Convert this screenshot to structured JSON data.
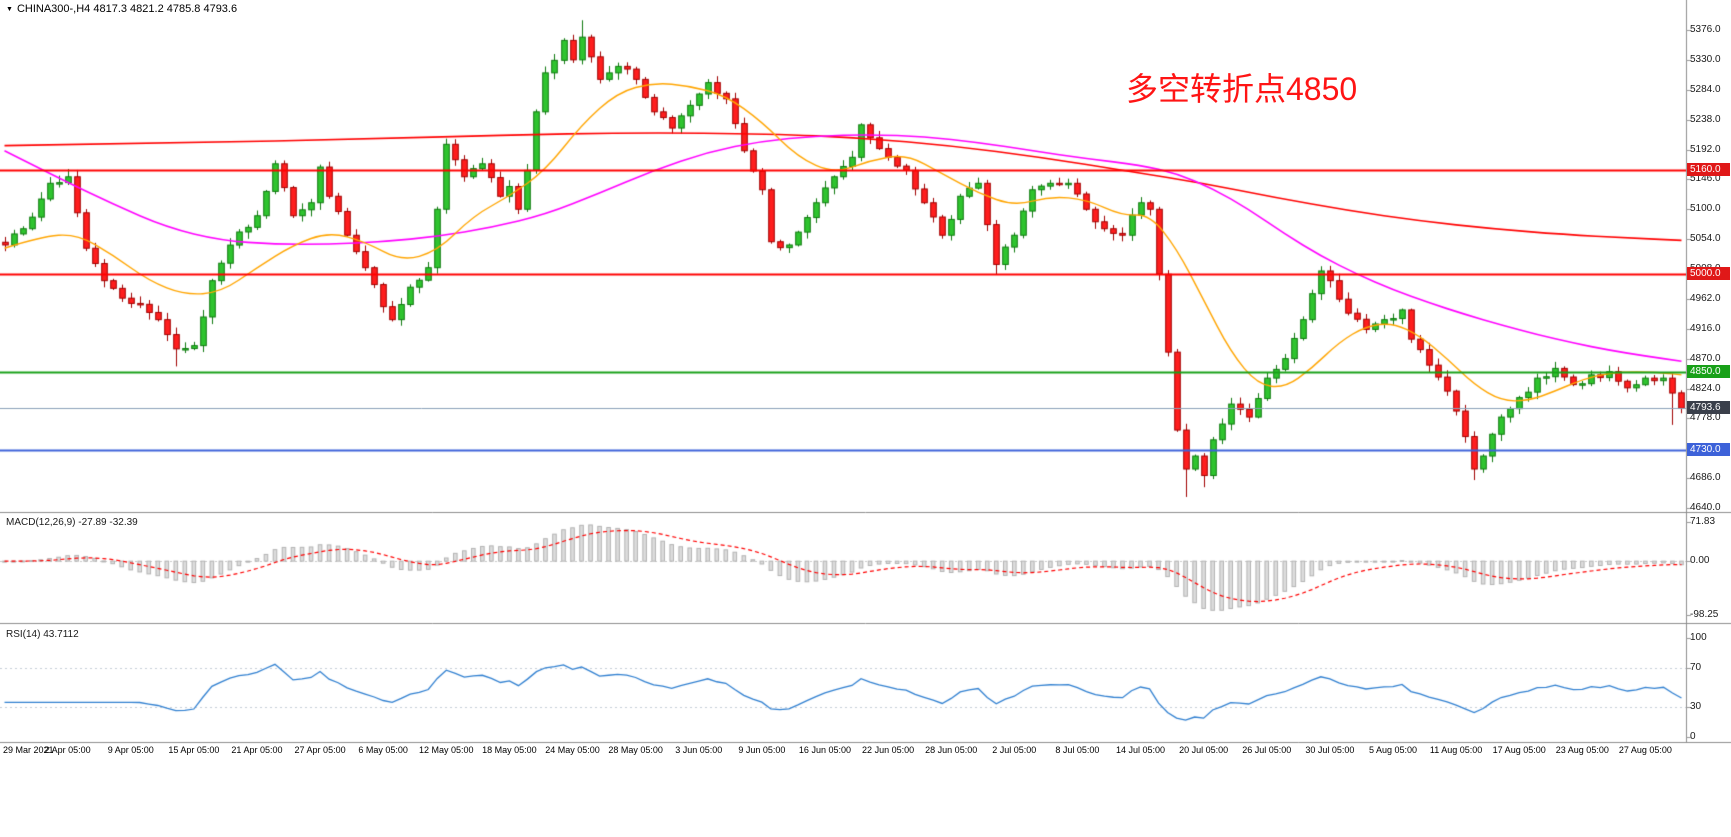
{
  "header": {
    "dropdown_glyph": "▼",
    "symbol_ohlc": "CHINA300-,H4 4817.3 4821.2 4785.8 4793.6"
  },
  "annotation": {
    "text": "多空转折点4850",
    "color": "#ff1414"
  },
  "price_panel": {
    "axis_ticks": [
      "5376.0",
      "5330.0",
      "5284.0",
      "5238.0",
      "5192.0",
      "5146.0",
      "5100.0",
      "5054.0",
      "5008.0",
      "4962.0",
      "4916.0",
      "4870.0",
      "4824.0",
      "4778.0",
      "4732.0",
      "4686.0",
      "4640.0"
    ],
    "hlines": [
      {
        "price": 5160.0,
        "label": "5160.0",
        "line_color": "#ff0000",
        "label_bg": "#e01818"
      },
      {
        "price": 5000.0,
        "label": "5000.0",
        "line_color": "#ff0000",
        "label_bg": "#e01818"
      },
      {
        "price": 4850.0,
        "label": "4850.0",
        "line_color": "#18a018",
        "label_bg": "#18a018"
      },
      {
        "price": 4730.0,
        "label": "4730.0",
        "line_color": "#3d62d9",
        "label_bg": "#3d62d9"
      }
    ],
    "current_price": {
      "price": 4793.6,
      "label": "4793.6",
      "line_color": "#8aa0b8",
      "label_bg": "#3a3f4a"
    }
  },
  "macd_panel": {
    "name": "MACD(12,26,9)",
    "values_text": "-27.89 -32.39",
    "ticks": [
      {
        "label": "71.83",
        "value": 71.83
      },
      {
        "label": "0.00",
        "value": 0
      },
      {
        "label": "-98.25",
        "value": -98.25
      }
    ]
  },
  "rsi_panel": {
    "name": "RSI(14)",
    "value_text": "43.7112",
    "levels": [
      70,
      30
    ],
    "ticks": [
      {
        "label": "100",
        "value": 100
      },
      {
        "label": "70",
        "value": 70
      },
      {
        "label": "30",
        "value": 30
      },
      {
        "label": "0",
        "value": 0
      }
    ]
  },
  "time_axis": {
    "labels": [
      "29 Mar 2021",
      "2 Apr 05:00",
      "9 Apr 05:00",
      "15 Apr 05:00",
      "21 Apr 05:00",
      "27 Apr 05:00",
      "6 May 05:00",
      "12 May 05:00",
      "18 May 05:00",
      "24 May 05:00",
      "28 May 05:00",
      "3 Jun 05:00",
      "9 Jun 05:00",
      "16 Jun 05:00",
      "22 Jun 05:00",
      "28 Jun 05:00",
      "2 Jul 05:00",
      "8 Jul 05:00",
      "14 Jul 05:00",
      "20 Jul 05:00",
      "26 Jul 05:00",
      "30 Jul 05:00",
      "5 Aug 05:00",
      "11 Aug 05:00",
      "17 Aug 05:00",
      "23 Aug 05:00",
      "27 Aug 05:00"
    ]
  },
  "colors": {
    "up_fill": "#2fc42f",
    "up_edge": "#0f7a0f",
    "down_fill": "#ff1e1e",
    "down_edge": "#a00000",
    "macd_hist_fill": "#dcdcdc",
    "macd_hist_edge": "#b3b3b3",
    "macd_signal": "#ff0000",
    "rsi_line": "#2f7fd0",
    "separator": "#8c8c8c",
    "axis_text": "#1a1a1a"
  },
  "chart_data": {
    "type": "candlestick",
    "symbol": "CHINA300-",
    "timeframe": "H4",
    "ohlc_current": {
      "open": 4817.3,
      "high": 4821.2,
      "low": 4785.8,
      "close": 4793.6
    },
    "last_price": 4793.6,
    "n_candles": 187,
    "price_axis_range": [
      4640,
      5376
    ],
    "horizontal_lines": [
      5160.0,
      5000.0,
      4850.0,
      4730.0
    ],
    "close_anchors": [
      [
        0,
        5045
      ],
      [
        2,
        5070
      ],
      [
        5,
        5140
      ],
      [
        7,
        5150
      ],
      [
        9,
        5040
      ],
      [
        11,
        4990
      ],
      [
        14,
        4955
      ],
      [
        17,
        4930
      ],
      [
        19,
        4885
      ],
      [
        21,
        4890
      ],
      [
        23,
        4990
      ],
      [
        26,
        5065
      ],
      [
        28,
        5090
      ],
      [
        30,
        5170
      ],
      [
        32,
        5090
      ],
      [
        34,
        5110
      ],
      [
        35,
        5165
      ],
      [
        36,
        5120
      ],
      [
        38,
        5060
      ],
      [
        40,
        5010
      ],
      [
        42,
        4950
      ],
      [
        43,
        4930
      ],
      [
        45,
        4980
      ],
      [
        47,
        5010
      ],
      [
        48,
        5100
      ],
      [
        49,
        5200
      ],
      [
        51,
        5150
      ],
      [
        53,
        5170
      ],
      [
        55,
        5120
      ],
      [
        56,
        5135
      ],
      [
        57,
        5100
      ],
      [
        58,
        5160
      ],
      [
        59,
        5250
      ],
      [
        60,
        5310
      ],
      [
        62,
        5360
      ],
      [
        63,
        5330
      ],
      [
        64,
        5365
      ],
      [
        66,
        5300
      ],
      [
        68,
        5320
      ],
      [
        70,
        5300
      ],
      [
        72,
        5250
      ],
      [
        74,
        5225
      ],
      [
        76,
        5260
      ],
      [
        78,
        5295
      ],
      [
        80,
        5270
      ],
      [
        82,
        5190
      ],
      [
        84,
        5130
      ],
      [
        85,
        5050
      ],
      [
        87,
        5045
      ],
      [
        90,
        5110
      ],
      [
        92,
        5150
      ],
      [
        94,
        5180
      ],
      [
        95,
        5230
      ],
      [
        96,
        5210
      ],
      [
        98,
        5180
      ],
      [
        100,
        5160
      ],
      [
        102,
        5110
      ],
      [
        104,
        5060
      ],
      [
        106,
        5120
      ],
      [
        108,
        5140
      ],
      [
        110,
        5015
      ],
      [
        112,
        5060
      ],
      [
        114,
        5130
      ],
      [
        116,
        5140
      ],
      [
        118,
        5140
      ],
      [
        120,
        5100
      ],
      [
        122,
        5070
      ],
      [
        124,
        5060
      ],
      [
        126,
        5110
      ],
      [
        127,
        5100
      ],
      [
        128,
        5000
      ],
      [
        129,
        4880
      ],
      [
        130,
        4760
      ],
      [
        131,
        4700
      ],
      [
        132,
        4720
      ],
      [
        133,
        4690
      ],
      [
        134,
        4745
      ],
      [
        136,
        4800
      ],
      [
        138,
        4780
      ],
      [
        140,
        4840
      ],
      [
        142,
        4870
      ],
      [
        144,
        4930
      ],
      [
        145,
        4970
      ],
      [
        146,
        5005
      ],
      [
        147,
        4990
      ],
      [
        149,
        4940
      ],
      [
        151,
        4915
      ],
      [
        153,
        4930
      ],
      [
        155,
        4945
      ],
      [
        156,
        4900
      ],
      [
        158,
        4860
      ],
      [
        160,
        4820
      ],
      [
        162,
        4750
      ],
      [
        163,
        4700
      ],
      [
        164,
        4720
      ],
      [
        166,
        4780
      ],
      [
        168,
        4810
      ],
      [
        170,
        4840
      ],
      [
        172,
        4855
      ],
      [
        174,
        4830
      ],
      [
        176,
        4845
      ],
      [
        178,
        4850
      ],
      [
        180,
        4825
      ],
      [
        182,
        4840
      ],
      [
        184,
        4840
      ],
      [
        185,
        4817
      ],
      [
        186,
        4793.6
      ]
    ],
    "wick_overrides": [
      {
        "i": 7,
        "high": 5162
      },
      {
        "i": 19,
        "low": 4858
      },
      {
        "i": 64,
        "high": 5391
      },
      {
        "i": 110,
        "low": 4999
      },
      {
        "i": 131,
        "low": 4657
      },
      {
        "i": 133,
        "low": 4672
      },
      {
        "i": 163,
        "low": 4683
      },
      {
        "i": 185,
        "low": 4768
      }
    ],
    "moving_averages": [
      {
        "name": "ma-slow",
        "color": "#ff0000",
        "width": 1.6,
        "anchors": [
          [
            0,
            5198
          ],
          [
            20,
            5202
          ],
          [
            40,
            5208
          ],
          [
            55,
            5214
          ],
          [
            70,
            5218
          ],
          [
            85,
            5216
          ],
          [
            95,
            5210
          ],
          [
            105,
            5198
          ],
          [
            115,
            5180
          ],
          [
            125,
            5158
          ],
          [
            133,
            5140
          ],
          [
            141,
            5118
          ],
          [
            149,
            5098
          ],
          [
            157,
            5082
          ],
          [
            165,
            5070
          ],
          [
            173,
            5061
          ],
          [
            180,
            5056
          ],
          [
            186,
            5052
          ]
        ]
      },
      {
        "name": "ma-medium",
        "color": "#ff00ff",
        "width": 1.6,
        "anchors": [
          [
            0,
            5190
          ],
          [
            6,
            5148
          ],
          [
            12,
            5108
          ],
          [
            18,
            5072
          ],
          [
            24,
            5052
          ],
          [
            30,
            5046
          ],
          [
            36,
            5046
          ],
          [
            42,
            5050
          ],
          [
            48,
            5058
          ],
          [
            54,
            5072
          ],
          [
            60,
            5092
          ],
          [
            66,
            5125
          ],
          [
            72,
            5160
          ],
          [
            78,
            5188
          ],
          [
            84,
            5205
          ],
          [
            90,
            5213
          ],
          [
            96,
            5215
          ],
          [
            102,
            5212
          ],
          [
            108,
            5203
          ],
          [
            114,
            5190
          ],
          [
            120,
            5178
          ],
          [
            126,
            5168
          ],
          [
            130,
            5155
          ],
          [
            134,
            5132
          ],
          [
            138,
            5100
          ],
          [
            142,
            5062
          ],
          [
            146,
            5028
          ],
          [
            150,
            5000
          ],
          [
            154,
            4976
          ],
          [
            158,
            4956
          ],
          [
            162,
            4938
          ],
          [
            166,
            4922
          ],
          [
            170,
            4907
          ],
          [
            174,
            4894
          ],
          [
            178,
            4883
          ],
          [
            182,
            4874
          ],
          [
            186,
            4866
          ]
        ]
      },
      {
        "name": "ma-fast",
        "color": "#ffa500",
        "width": 1.4,
        "anchors": [
          [
            0,
            5040
          ],
          [
            4,
            5058
          ],
          [
            8,
            5062
          ],
          [
            12,
            5030
          ],
          [
            16,
            4990
          ],
          [
            20,
            4968
          ],
          [
            24,
            4972
          ],
          [
            28,
            5010
          ],
          [
            32,
            5045
          ],
          [
            36,
            5065
          ],
          [
            40,
            5050
          ],
          [
            44,
            5020
          ],
          [
            48,
            5035
          ],
          [
            52,
            5090
          ],
          [
            56,
            5120
          ],
          [
            60,
            5160
          ],
          [
            64,
            5230
          ],
          [
            68,
            5280
          ],
          [
            72,
            5295
          ],
          [
            76,
            5290
          ],
          [
            80,
            5275
          ],
          [
            84,
            5235
          ],
          [
            88,
            5180
          ],
          [
            92,
            5155
          ],
          [
            96,
            5175
          ],
          [
            100,
            5185
          ],
          [
            104,
            5155
          ],
          [
            108,
            5125
          ],
          [
            112,
            5105
          ],
          [
            116,
            5120
          ],
          [
            120,
            5115
          ],
          [
            124,
            5090
          ],
          [
            127,
            5092
          ],
          [
            130,
            5040
          ],
          [
            133,
            4960
          ],
          [
            136,
            4880
          ],
          [
            139,
            4830
          ],
          [
            142,
            4825
          ],
          [
            145,
            4855
          ],
          [
            148,
            4895
          ],
          [
            151,
            4920
          ],
          [
            154,
            4925
          ],
          [
            157,
            4905
          ],
          [
            160,
            4870
          ],
          [
            163,
            4830
          ],
          [
            166,
            4805
          ],
          [
            169,
            4805
          ],
          [
            172,
            4820
          ],
          [
            175,
            4838
          ],
          [
            178,
            4848
          ],
          [
            181,
            4850
          ],
          [
            184,
            4848
          ],
          [
            186,
            4845
          ]
        ]
      }
    ],
    "indicators": {
      "macd": {
        "params": [
          12,
          26,
          9
        ],
        "current_macd": -27.89,
        "current_signal": -32.39,
        "axis": [
          71.83,
          0.0,
          -98.25
        ]
      },
      "rsi": {
        "period": 14,
        "current": 43.7112,
        "axis": [
          100,
          70,
          30,
          0
        ]
      }
    }
  }
}
